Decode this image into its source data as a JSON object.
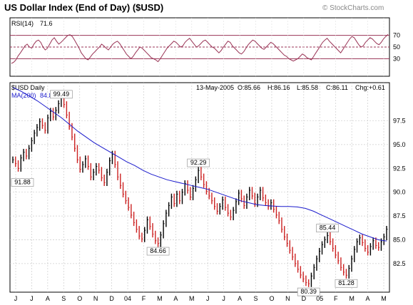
{
  "title": "US Dollar Index (End of Day) ($USD)",
  "watermark": "© StockCharts.com",
  "rsi_panel": {
    "label_prefix": "RSI(14)",
    "label_value": "71.6",
    "levels": [
      70,
      50,
      30
    ],
    "tick_labels": [
      "70",
      "50",
      "30"
    ],
    "series": [
      22,
      24,
      28,
      35,
      40,
      46,
      52,
      55,
      50,
      48,
      55,
      60,
      62,
      58,
      50,
      45,
      48,
      55,
      62,
      66,
      60,
      55,
      58,
      62,
      66,
      70,
      71,
      68,
      62,
      55,
      48,
      40,
      35,
      30,
      28,
      33,
      38,
      42,
      46,
      50,
      55,
      52,
      48,
      45,
      50,
      55,
      58,
      60,
      56,
      50,
      44,
      38,
      34,
      30,
      34,
      40,
      45,
      50,
      48,
      44,
      40,
      36,
      32,
      30,
      28,
      25,
      30,
      36,
      42,
      48,
      52,
      56,
      60,
      58,
      54,
      50,
      52,
      58,
      62,
      65,
      60,
      55,
      50,
      52,
      56,
      60,
      62,
      58,
      54,
      50,
      48,
      44,
      40,
      44,
      50,
      55,
      60,
      58,
      52,
      48,
      44,
      40,
      38,
      42,
      48,
      54,
      58,
      62,
      60,
      56,
      52,
      48,
      46,
      50,
      54,
      58,
      56,
      52,
      48,
      44,
      40,
      36,
      34,
      30,
      28,
      26,
      28,
      30,
      34,
      38,
      36,
      32,
      30,
      28,
      34,
      40,
      46,
      52,
      58,
      62,
      65,
      60,
      56,
      52,
      48,
      44,
      40,
      46,
      52,
      58,
      64,
      68,
      66,
      60,
      54,
      50,
      52,
      58,
      62,
      66,
      64,
      60,
      56,
      54,
      58,
      64,
      68,
      71.6
    ],
    "color": "#993355"
  },
  "price_panel": {
    "symbol_label": "$USD Daily",
    "ma_label_prefix": "MA(200)",
    "ma_label_value": "84.87",
    "header_date": "13-May-2005",
    "header_open": "O:85.66",
    "header_high": "H:86.16",
    "header_low": "L:85.58",
    "header_close": "C:86.11",
    "header_chg": "Chg:+0.61",
    "ma_color": "#1a1acc",
    "price_color": "#000000"
  },
  "chart_data": {
    "type": "line",
    "title": "US Dollar Index (End of Day) ($USD)",
    "x_labels": [
      "J",
      "J",
      "A",
      "S",
      "O",
      "N",
      "D",
      "04",
      "F",
      "M",
      "A",
      "M",
      "J",
      "J",
      "A",
      "S",
      "O",
      "N",
      "D",
      "05",
      "F",
      "M",
      "A",
      "M"
    ],
    "ylim": [
      79.5,
      101.5
    ],
    "yticks": [
      82.5,
      85.0,
      87.5,
      90.0,
      92.5,
      95.0,
      97.5
    ],
    "ytick_labels": [
      "82.5",
      "85.0",
      "87.5",
      "90.0",
      "92.5",
      "95.0",
      "97.5"
    ],
    "price_series": {
      "name": "$USD Daily",
      "values": [
        93.4,
        93.0,
        92.5,
        93.6,
        94.2,
        93.8,
        94.6,
        95.4,
        96.2,
        96.8,
        97.4,
        97.0,
        96.5,
        97.8,
        98.5,
        97.9,
        98.6,
        99.3,
        99.9,
        99.2,
        98.1,
        96.9,
        95.8,
        94.6,
        93.4,
        92.4,
        92.9,
        93.5,
        92.7,
        91.6,
        92.1,
        92.7,
        92.3,
        91.5,
        91.0,
        92.1,
        93.3,
        94.0,
        92.9,
        91.6,
        90.7,
        89.8,
        89.1,
        88.4,
        87.6,
        86.8,
        86.1,
        85.4,
        85.1,
        86.0,
        87.1,
        86.4,
        85.6,
        84.9,
        84.6,
        85.5,
        86.7,
        87.8,
        88.6,
        89.5,
        88.8,
        89.8,
        89.1,
        90.0,
        90.9,
        90.2,
        89.5,
        90.4,
        91.3,
        92.29,
        91.6,
        90.8,
        90.1,
        89.6,
        89.1,
        88.5,
        88.0,
        88.5,
        89.2,
        88.4,
        87.8,
        87.4,
        88.1,
        89.0,
        89.9,
        89.3,
        88.6,
        89.5,
        90.2,
        89.6,
        88.8,
        89.5,
        90.2,
        89.4,
        88.9,
        88.5,
        88.9,
        88.2,
        87.6,
        87.0,
        86.1,
        85.3,
        84.6,
        83.9,
        83.2,
        82.5,
        81.9,
        81.3,
        80.9,
        80.5,
        80.39,
        81.2,
        82.1,
        83.0,
        83.8,
        84.5,
        85.0,
        85.44,
        84.8,
        84.1,
        83.4,
        82.8,
        82.1,
        81.6,
        81.28,
        82.0,
        83.0,
        84.0,
        84.8,
        85.2,
        84.7,
        84.1,
        83.7,
        84.3,
        84.9,
        84.4,
        84.2,
        84.8,
        85.3,
        86.11
      ]
    },
    "ma_series": {
      "name": "MA(200)",
      "values": [
        101.0,
        100.6,
        100.1,
        99.6,
        99.0,
        98.4,
        97.8,
        97.1,
        96.4,
        95.8,
        95.2,
        94.7,
        94.2,
        93.7,
        93.2,
        92.8,
        92.3,
        91.9,
        91.6,
        91.3,
        91.1,
        90.9,
        90.7,
        90.5,
        90.3,
        90.0,
        89.7,
        89.4,
        89.1,
        88.9,
        88.7,
        88.6,
        88.55,
        88.5,
        88.5,
        88.45,
        88.3,
        88.0,
        87.6,
        87.2,
        86.8,
        86.4,
        86.0,
        85.6,
        85.3,
        85.0,
        84.87
      ]
    },
    "annotations": [
      {
        "text": "91.88",
        "x_index": 0,
        "value": 91.88
      },
      {
        "text": "99.49",
        "x_index": 18,
        "value": 99.49
      },
      {
        "text": "84.66",
        "x_index": 54,
        "value": 84.66
      },
      {
        "text": "92.29",
        "x_index": 69,
        "value": 92.29
      },
      {
        "text": "80.39",
        "x_index": 110,
        "value": 80.39
      },
      {
        "text": "85.44",
        "x_index": 117,
        "value": 85.44
      },
      {
        "text": "81.28",
        "x_index": 124,
        "value": 81.28
      }
    ],
    "grid": true
  }
}
